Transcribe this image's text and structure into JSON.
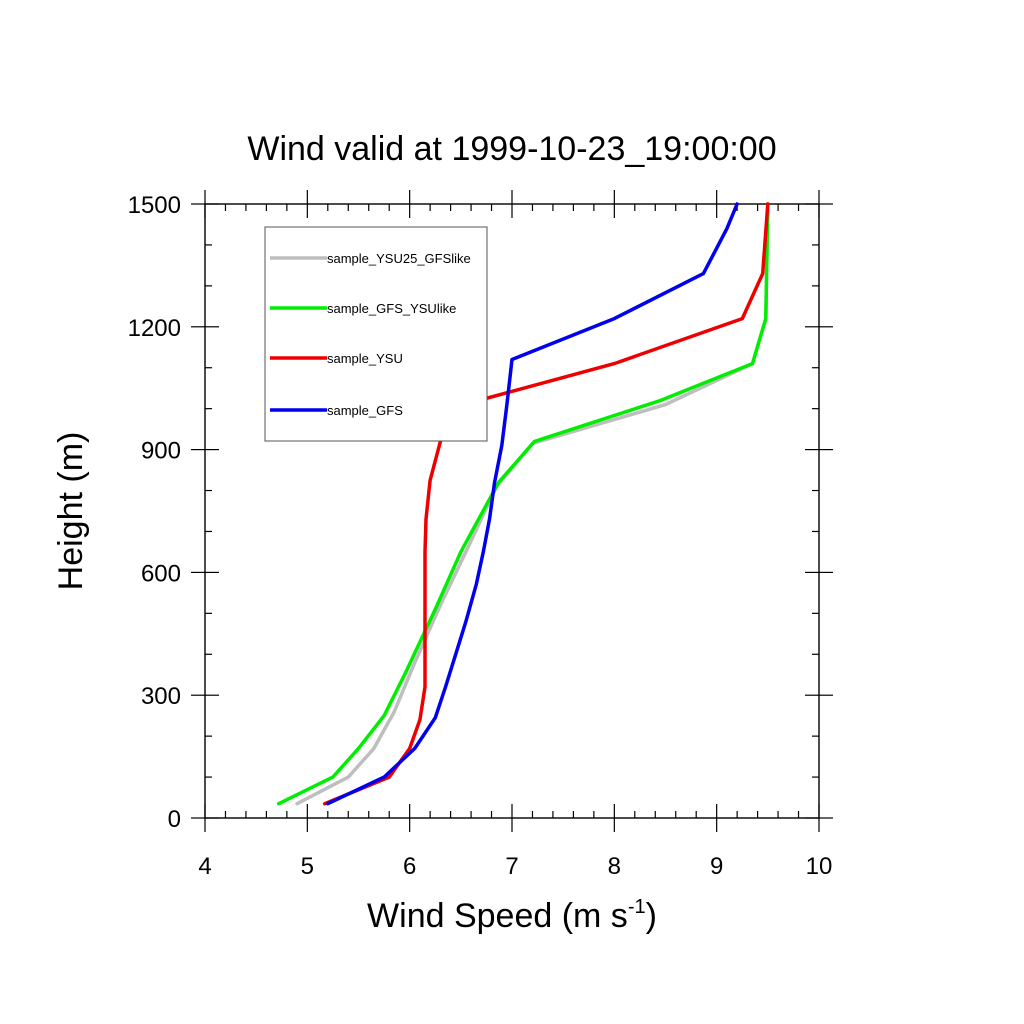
{
  "chart_data": {
    "type": "line",
    "title": "Wind valid at 1999-10-23_19:00:00",
    "xlabel": "Wind Speed (m s",
    "xlabel_sup": "-1",
    "xlabel_close": ")",
    "ylabel": "Height (m)",
    "xlim": [
      4,
      10
    ],
    "ylim": [
      0,
      1500
    ],
    "xticks": [
      "4",
      "5",
      "6",
      "7",
      "8",
      "9",
      "10"
    ],
    "yticks": [
      "0",
      "300",
      "600",
      "900",
      "1200",
      "1500"
    ],
    "legend_placement": "top-left",
    "series": [
      {
        "name": "sample_YSU25_GFSlike",
        "color": "#bebebe",
        "points": [
          [
            4.9,
            35
          ],
          [
            5.4,
            100
          ],
          [
            5.65,
            170
          ],
          [
            5.85,
            260
          ],
          [
            6.05,
            380
          ],
          [
            6.3,
            520
          ],
          [
            6.55,
            650
          ],
          [
            6.85,
            810
          ],
          [
            7.2,
            915
          ],
          [
            8.5,
            1010
          ],
          [
            9.35,
            1110
          ],
          [
            9.48,
            1220
          ],
          [
            9.5,
            1500
          ]
        ]
      },
      {
        "name": "sample_GFS_YSUlike",
        "color": "#00ee00",
        "points": [
          [
            4.72,
            35
          ],
          [
            5.25,
            100
          ],
          [
            5.5,
            170
          ],
          [
            5.75,
            250
          ],
          [
            5.95,
            350
          ],
          [
            6.25,
            510
          ],
          [
            6.5,
            650
          ],
          [
            6.87,
            820
          ],
          [
            7.22,
            920
          ],
          [
            8.45,
            1020
          ],
          [
            9.35,
            1110
          ],
          [
            9.48,
            1220
          ],
          [
            9.5,
            1500
          ]
        ]
      },
      {
        "name": "sample_YSU",
        "color": "#ee0000",
        "points": [
          [
            5.17,
            35
          ],
          [
            5.8,
            100
          ],
          [
            6.0,
            170
          ],
          [
            6.1,
            240
          ],
          [
            6.15,
            320
          ],
          [
            6.15,
            480
          ],
          [
            6.15,
            650
          ],
          [
            6.16,
            730
          ],
          [
            6.2,
            825
          ],
          [
            6.3,
            920
          ],
          [
            6.6,
            1015
          ],
          [
            8.0,
            1110
          ],
          [
            9.25,
            1220
          ],
          [
            9.45,
            1330
          ],
          [
            9.5,
            1500
          ]
        ]
      },
      {
        "name": "sample_GFS",
        "color": "#0000ee",
        "points": [
          [
            5.2,
            35
          ],
          [
            5.75,
            100
          ],
          [
            6.05,
            170
          ],
          [
            6.25,
            245
          ],
          [
            6.35,
            320
          ],
          [
            6.45,
            400
          ],
          [
            6.55,
            480
          ],
          [
            6.65,
            570
          ],
          [
            6.72,
            650
          ],
          [
            6.78,
            730
          ],
          [
            6.83,
            820
          ],
          [
            6.9,
            910
          ],
          [
            6.95,
            1010
          ],
          [
            7.0,
            1120
          ],
          [
            8.0,
            1220
          ],
          [
            8.87,
            1330
          ],
          [
            9.1,
            1440
          ],
          [
            9.2,
            1500
          ]
        ]
      }
    ]
  }
}
